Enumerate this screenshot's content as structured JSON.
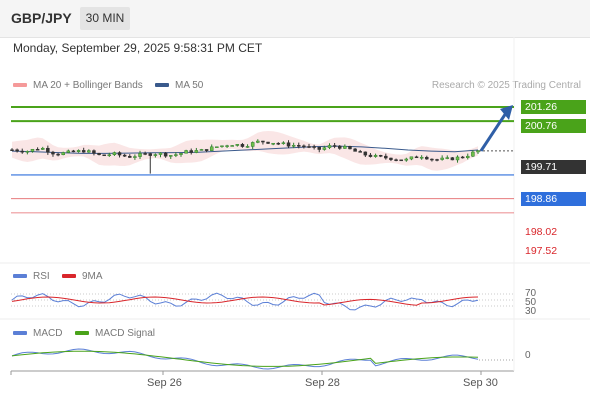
{
  "header": {
    "pair": "GBP/JPY",
    "timeframe": "30 MIN",
    "datetime": "Monday, September 29, 2025 9:58:31 PM CET"
  },
  "legend": {
    "ma_bb": "MA 20 + Bollinger Bands",
    "ma50": "MA 50",
    "credit": "Research © 2025 Trading Central"
  },
  "levels": [
    {
      "label": "201.26",
      "value": 201.26,
      "kind": "resistance",
      "color": "#4aa31a"
    },
    {
      "label": "200.76",
      "value": 200.76,
      "kind": "resistance",
      "color": "#4aa31a"
    },
    {
      "label": "199.71",
      "value": 199.71,
      "kind": "current",
      "color": "#333333"
    },
    {
      "label": "198.86",
      "value": 198.86,
      "kind": "pivot",
      "color": "#2f6fdc"
    },
    {
      "label": "198.02",
      "value": 198.02,
      "kind": "support",
      "color": "#d9262b"
    },
    {
      "label": "197.52",
      "value": 197.52,
      "kind": "support",
      "color": "#d9262b"
    }
  ],
  "rsi": {
    "legend_rsi": "RSI",
    "legend_ma": "9MA",
    "ticks": [
      "70",
      "50",
      "30"
    ]
  },
  "macd": {
    "legend_macd": "MACD",
    "legend_signal": "MACD Signal",
    "zero": "0"
  },
  "xaxis": {
    "ticks": [
      "Sep 26",
      "Sep 28",
      "Sep 30"
    ]
  },
  "colors": {
    "resistance": "#4aa31a",
    "pivot": "#2f6fdc",
    "support": "#d9262b",
    "bull": "#2f7d2f",
    "bear": "#333333",
    "ma50": "#3a5a8c",
    "bollinger": "#f2b8b8",
    "rsi": "#5b7fd6",
    "rsi_ma": "#d9262b",
    "macd": "#5b7fd6",
    "signal": "#4aa31a"
  },
  "chart_data": {
    "type": "candlestick",
    "close_path": [
      199.75,
      199.7,
      199.82,
      199.6,
      199.66,
      199.72,
      199.55,
      199.6,
      199.5,
      199.58,
      199.62,
      199.55,
      199.68,
      199.72,
      199.85,
      199.95,
      199.9,
      200.05,
      200.0,
      199.92,
      199.88,
      199.75,
      199.9,
      199.8,
      199.6,
      199.5,
      199.45,
      199.38,
      199.55,
      199.4,
      199.42,
      199.5,
      199.71
    ],
    "ma50_path": [
      199.7,
      199.68,
      199.65,
      199.62,
      199.62,
      199.63,
      199.64,
      199.65,
      199.66,
      199.7,
      199.74,
      199.78,
      199.82,
      199.86,
      199.88,
      199.85,
      199.8,
      199.74,
      199.7,
      199.68,
      199.74
    ],
    "forecast": {
      "from": 199.71,
      "to": 201.26,
      "direction": "up"
    },
    "rsi_ticks": [
      70,
      50,
      30
    ]
  }
}
